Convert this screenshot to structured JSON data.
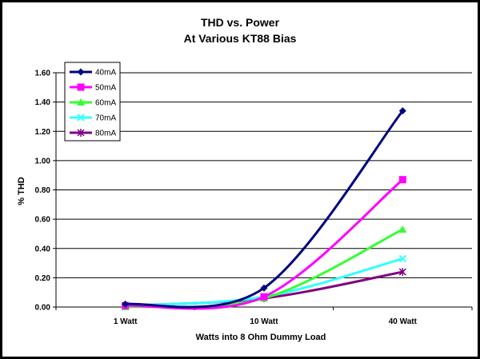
{
  "chart_data": {
    "type": "line",
    "title": "THD vs. Power",
    "subtitle": "At Various KT88 Bias",
    "xlabel": "Watts into 8 Ohm Dummy Load",
    "ylabel": "% THD",
    "categories": [
      "1 Watt",
      "10 Watt",
      "40 Watt"
    ],
    "ylim": [
      0,
      1.6
    ],
    "yticks": [
      "0.00",
      "0.20",
      "0.40",
      "0.60",
      "0.80",
      "1.00",
      "1.20",
      "1.40",
      "1.60"
    ],
    "grid": true,
    "legend_position": "top-left",
    "smoothed": true,
    "series": [
      {
        "name": "40mA",
        "values": [
          0.02,
          0.13,
          1.34
        ],
        "color": "#000080",
        "marker": "diamond"
      },
      {
        "name": "50mA",
        "values": [
          0.01,
          0.07,
          0.87
        ],
        "color": "#ff00ff",
        "marker": "square"
      },
      {
        "name": "60mA",
        "values": [
          0.0,
          0.06,
          0.53
        ],
        "color": "#33ff33",
        "marker": "triangle"
      },
      {
        "name": "70mA",
        "values": [
          0.01,
          0.07,
          0.33
        ],
        "color": "#33ffff",
        "marker": "x"
      },
      {
        "name": "80mA",
        "values": [
          0.01,
          0.06,
          0.24
        ],
        "color": "#800080",
        "marker": "star"
      }
    ]
  }
}
